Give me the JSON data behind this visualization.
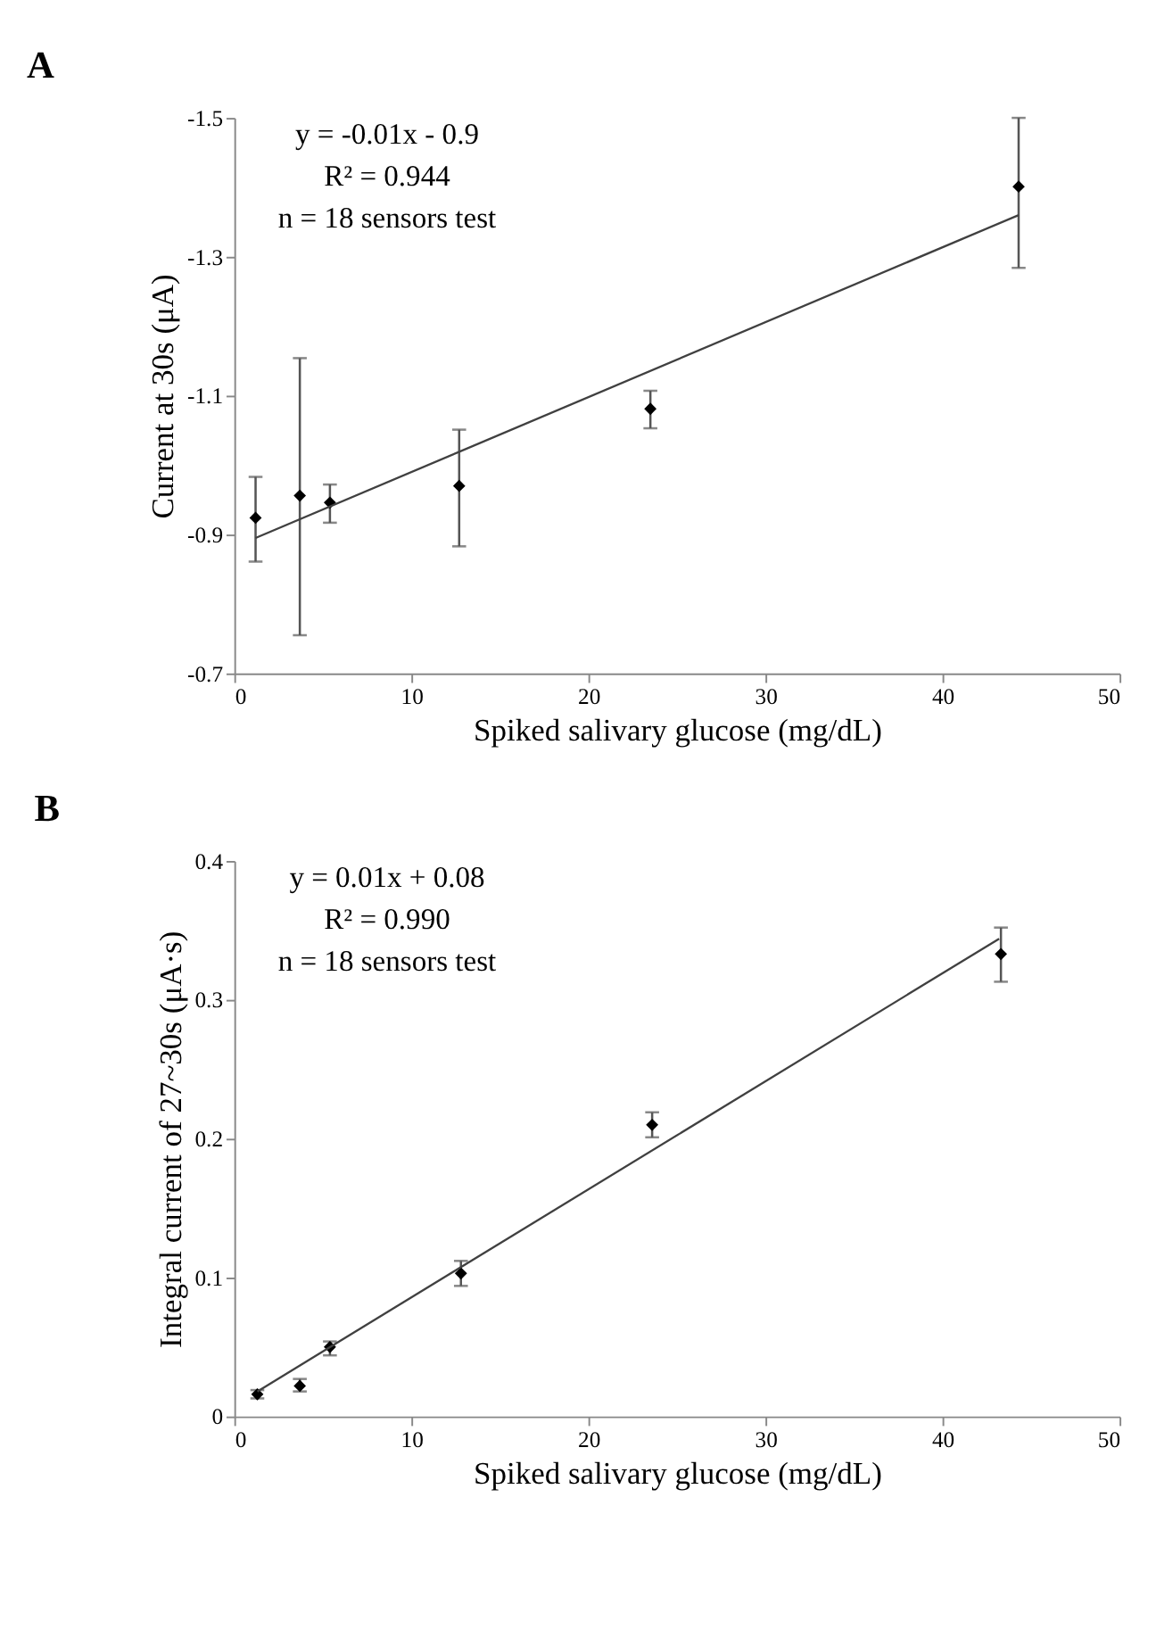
{
  "chart_data": [
    {
      "type": "scatter",
      "title": "A",
      "xlabel": "Spiked salivary glucose (mg/dL)",
      "ylabel": "Current at 30s (μA)",
      "xlim": [
        0,
        50
      ],
      "xticks": [
        0,
        10,
        20,
        30,
        40,
        50
      ],
      "ylim": [
        -0.7,
        -1.5
      ],
      "yticks": [
        -0.7,
        -0.9,
        -1.1,
        -1.3,
        -1.5
      ],
      "grid": false,
      "annotations": [
        "y = -0.01x - 0.9",
        "R² = 0.944",
        "n = 18 sensors test"
      ],
      "series": [
        {
          "type": "scatter",
          "marker": "diamond",
          "color": "#000000",
          "x": [
            1.2,
            3.7,
            5.4,
            12.7,
            23.5,
            44.3
          ],
          "values": [
            -0.924,
            -0.956,
            -0.946,
            -0.97,
            -1.081,
            -1.401
          ],
          "errors": [
            [
              -0.861,
              -0.983
            ],
            [
              -0.755,
              -1.154
            ],
            [
              -0.917,
              -0.972
            ],
            [
              -0.883,
              -1.051
            ],
            [
              -1.053,
              -1.107
            ],
            [
              -1.284,
              -1.5
            ]
          ]
        },
        {
          "type": "line",
          "color": "#404040",
          "x": [
            1.2,
            44.3
          ],
          "values": [
            -0.895,
            -1.36
          ]
        }
      ]
    },
    {
      "type": "scatter",
      "title": "B",
      "xlabel": "Spiked salivary glucose (mg/dL)",
      "ylabel": "Integral current of 27~30s  (μA·s)",
      "xlim": [
        0,
        50
      ],
      "xticks": [
        0,
        10,
        20,
        30,
        40,
        50
      ],
      "ylim": [
        0,
        0.4
      ],
      "yticks": [
        0,
        0.1,
        0.2,
        0.3,
        0.4
      ],
      "grid": false,
      "annotations": [
        "y = 0.01x + 0.08",
        "R² = 0.990",
        "n = 18 sensors test"
      ],
      "series": [
        {
          "type": "scatter",
          "marker": "diamond",
          "color": "#000000",
          "x": [
            1.3,
            3.7,
            5.4,
            12.8,
            23.6,
            43.3
          ],
          "values": [
            0.016,
            0.022,
            0.05,
            0.103,
            0.21,
            0.333
          ],
          "errors": [
            [
              0.013,
              0.019
            ],
            [
              0.018,
              0.027
            ],
            [
              0.044,
              0.054
            ],
            [
              0.094,
              0.112
            ],
            [
              0.201,
              0.219
            ],
            [
              0.313,
              0.352
            ]
          ]
        },
        {
          "type": "line",
          "color": "#404040",
          "x": [
            1.3,
            43.2
          ],
          "values": [
            0.018,
            0.344
          ]
        }
      ]
    }
  ]
}
